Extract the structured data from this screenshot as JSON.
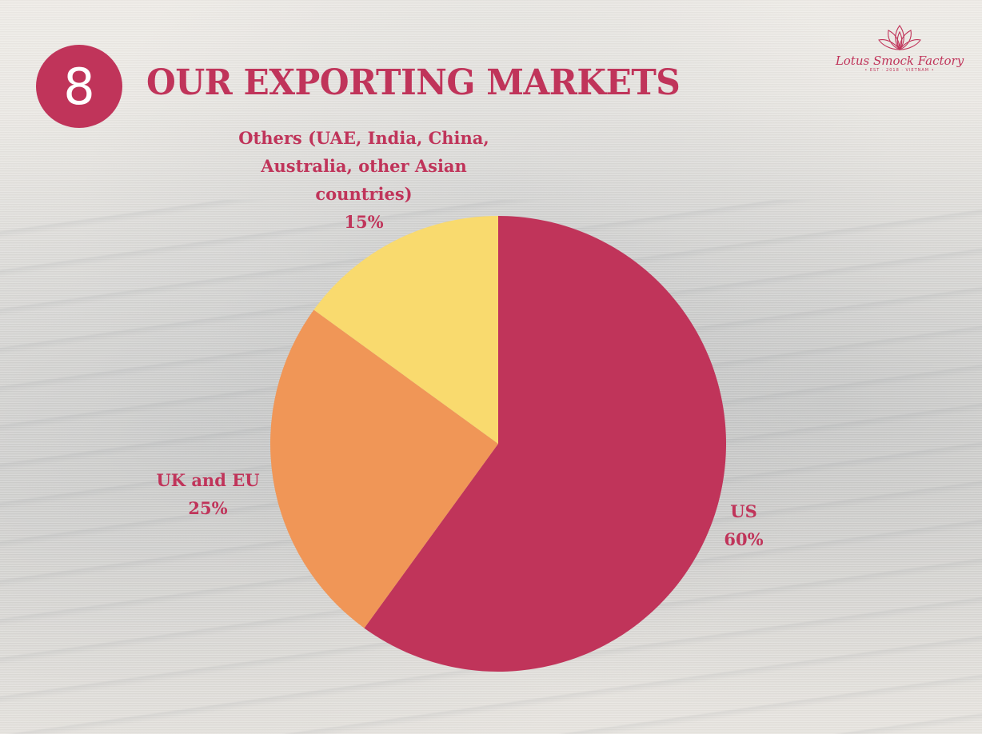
{
  "slide": {
    "number": "8",
    "title": "OUR EXPORTING MARKETS",
    "accent_color": "#c0345a"
  },
  "logo": {
    "name": "Lotus Smock Factory",
    "tagline": "• EST · 2018 · VIETNAM •",
    "icon": "lotus-flower-icon"
  },
  "chart_data": {
    "type": "pie",
    "title": "OUR EXPORTING MARKETS",
    "categories": [
      "US",
      "UK and EU",
      "Others (UAE, India, China, Australia, other Asian countries)"
    ],
    "values": [
      60,
      25,
      15
    ],
    "unit": "%",
    "colors": [
      "#c0345a",
      "#f09657",
      "#f9da6e"
    ],
    "start_angle": "12 o'clock, clockwise",
    "legend": "none (data labels outside slices)",
    "labels": [
      {
        "name": "US",
        "pct": "60%"
      },
      {
        "name": "UK and EU",
        "pct": "25%"
      },
      {
        "name": "Others (UAE, India, China, Australia, other Asian countries)",
        "pct": "15%"
      }
    ]
  }
}
